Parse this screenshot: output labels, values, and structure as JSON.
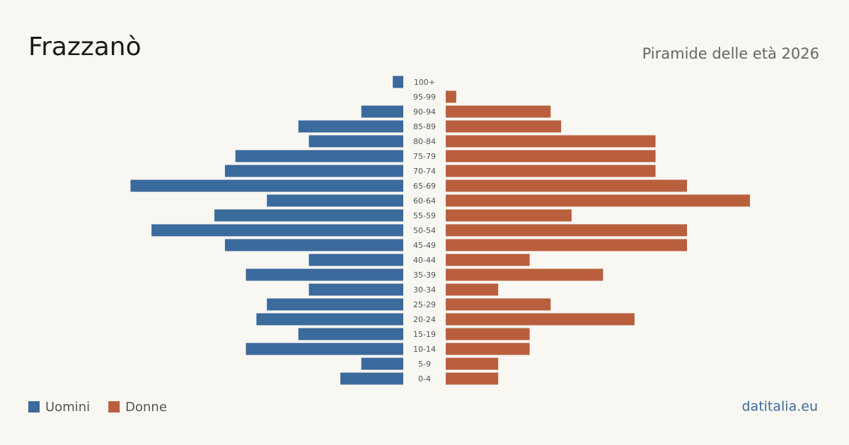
{
  "chart_data": {
    "type": "pyramid",
    "title": "Frazzanò",
    "subtitle": "Piramide delle età 2026",
    "source": "datitalia.eu",
    "categories": [
      "100+",
      "95-99",
      "90-94",
      "85-89",
      "80-84",
      "75-79",
      "70-74",
      "65-69",
      "60-64",
      "55-59",
      "50-54",
      "45-49",
      "40-44",
      "35-39",
      "30-34",
      "25-29",
      "20-24",
      "15-19",
      "10-14",
      "5-9",
      "0-4"
    ],
    "series": [
      {
        "name": "Uomini",
        "color": "#3b6a9c",
        "values": [
          1,
          0,
          4,
          10,
          9,
          16,
          17,
          26,
          13,
          18,
          24,
          17,
          9,
          15,
          9,
          13,
          14,
          10,
          15,
          4,
          6
        ]
      },
      {
        "name": "Donne",
        "color": "#b95f3d",
        "values": [
          0,
          1,
          10,
          11,
          20,
          20,
          20,
          23,
          29,
          12,
          23,
          23,
          8,
          15,
          5,
          10,
          18,
          8,
          8,
          5,
          5
        ]
      }
    ]
  }
}
